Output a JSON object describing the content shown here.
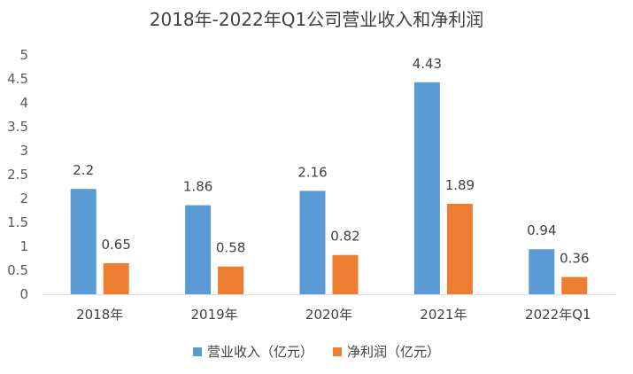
{
  "chart_data": {
    "type": "bar",
    "title": "2018年-2022年Q1公司营业收入和净利润",
    "categories": [
      "2018年",
      "2019年",
      "2020年",
      "2021年",
      "2022年Q1"
    ],
    "series": [
      {
        "name": "营业收入（亿元）",
        "color": "#5B9BD5",
        "values": [
          2.2,
          1.86,
          2.16,
          4.43,
          0.94
        ]
      },
      {
        "name": "净利润（亿元）",
        "color": "#ED7D31",
        "values": [
          0.65,
          0.58,
          0.82,
          1.89,
          0.36
        ]
      }
    ],
    "data_labels": [
      [
        "2.2",
        "1.86",
        "2.16",
        "4.43",
        "0.94"
      ],
      [
        "0.65",
        "0.58",
        "0.82",
        "1.89",
        "0.36"
      ]
    ],
    "ylim": [
      0,
      5
    ],
    "yticks": [
      "0",
      "0.5",
      "1",
      "1.5",
      "2",
      "2.5",
      "3",
      "3.5",
      "4",
      "4.5",
      "5"
    ],
    "grid": false,
    "legend_position": "bottom"
  }
}
